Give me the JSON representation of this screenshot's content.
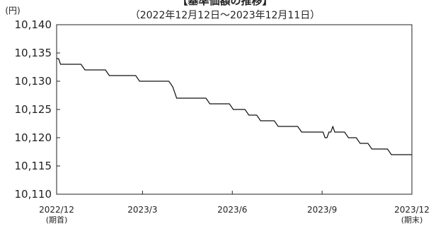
{
  "chart_data": {
    "type": "line",
    "title": "【基準価額の推移】",
    "subtitle": "（2022年12月12日～2023年12月11日）",
    "ylabel": "(円)",
    "xlabel": "",
    "ylim": [
      10110,
      10140
    ],
    "yticks": [
      10110,
      10115,
      10120,
      10125,
      10130,
      10135,
      10140
    ],
    "ytick_labels": [
      "10,110",
      "10,115",
      "10,120",
      "10,125",
      "10,130",
      "10,135",
      "10,140"
    ],
    "xlim": [
      "2022-12-12",
      "2023-12-11"
    ],
    "xticks": [
      {
        "date": "2022-12-12",
        "label": "2022/12",
        "sublabel": "(期首)"
      },
      {
        "date": "2023-03-10",
        "label": "2023/3",
        "sublabel": ""
      },
      {
        "date": "2023-06-10",
        "label": "2023/6",
        "sublabel": ""
      },
      {
        "date": "2023-09-10",
        "label": "2023/9",
        "sublabel": ""
      },
      {
        "date": "2023-12-11",
        "label": "2023/12",
        "sublabel": "(期末)"
      }
    ],
    "grid": false,
    "line_color": "#111111",
    "series": [
      {
        "x": [
          "2022-12-12",
          "2022-12-14",
          "2022-12-16",
          "2023-01-06",
          "2023-01-08",
          "2023-01-10",
          "2023-01-31",
          "2023-02-02",
          "2023-02-04",
          "2023-03-03",
          "2023-03-05",
          "2023-03-07",
          "2023-04-06",
          "2023-04-08",
          "2023-04-10",
          "2023-04-12",
          "2023-04-14",
          "2023-05-14",
          "2023-05-16",
          "2023-05-18",
          "2023-06-07",
          "2023-06-09",
          "2023-06-11",
          "2023-06-23",
          "2023-06-25",
          "2023-06-27",
          "2023-07-05",
          "2023-07-07",
          "2023-07-09",
          "2023-07-23",
          "2023-07-25",
          "2023-07-27",
          "2023-08-16",
          "2023-08-18",
          "2023-08-20",
          "2023-09-11",
          "2023-09-13",
          "2023-09-15",
          "2023-09-17",
          "2023-09-19",
          "2023-09-21",
          "2023-09-23",
          "2023-09-25",
          "2023-10-03",
          "2023-10-05",
          "2023-10-07",
          "2023-10-15",
          "2023-10-17",
          "2023-10-19",
          "2023-10-27",
          "2023-10-29",
          "2023-10-31",
          "2023-11-16",
          "2023-11-18",
          "2023-11-20",
          "2023-11-30",
          "2023-12-02",
          "2023-12-04",
          "2023-12-11"
        ],
        "values": [
          10134,
          10134,
          10133,
          10133,
          10132.5,
          10132,
          10132,
          10131.5,
          10131,
          10131,
          10130.5,
          10130,
          10130,
          10129.5,
          10129,
          10128,
          10127,
          10127,
          10126.5,
          10126,
          10126,
          10125.5,
          10125,
          10125,
          10124.5,
          10124,
          10124,
          10123.5,
          10123,
          10123,
          10122.5,
          10122,
          10122,
          10121.5,
          10121,
          10121,
          10120,
          10120,
          10121,
          10121,
          10122,
          10121,
          10121,
          10121,
          10120.5,
          10120,
          10120,
          10119.5,
          10119,
          10119,
          10118.5,
          10118,
          10118,
          10117.5,
          10117,
          10117,
          10117,
          10117,
          10117
        ]
      }
    ]
  }
}
